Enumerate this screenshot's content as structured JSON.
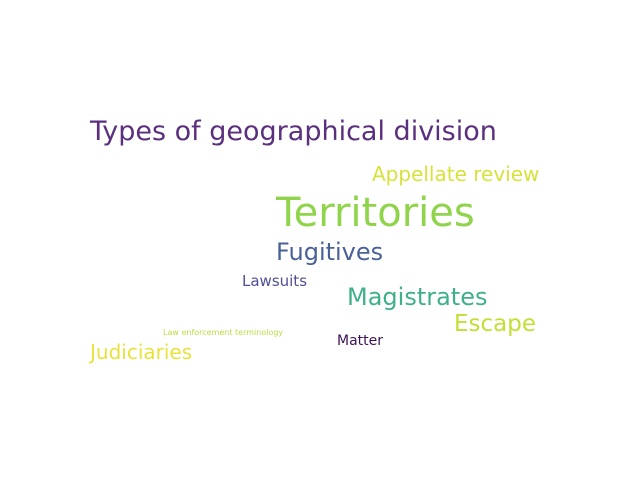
{
  "words": [
    {
      "text": "Types of geographical division",
      "color": "#5a2f7e"
    },
    {
      "text": "Appellate review",
      "color": "#d7e23a"
    },
    {
      "text": "Territories",
      "color": "#8fd44b"
    },
    {
      "text": "Fugitives",
      "color": "#4a6197"
    },
    {
      "text": "Lawsuits",
      "color": "#4f4f96"
    },
    {
      "text": "Magistrates",
      "color": "#3fb08a"
    },
    {
      "text": "Escape",
      "color": "#c4de34"
    },
    {
      "text": "Law enforcement terminology",
      "color": "#b9de44"
    },
    {
      "text": "Matter",
      "color": "#3e1356"
    },
    {
      "text": "Judiciaries",
      "color": "#e8e33a"
    }
  ]
}
